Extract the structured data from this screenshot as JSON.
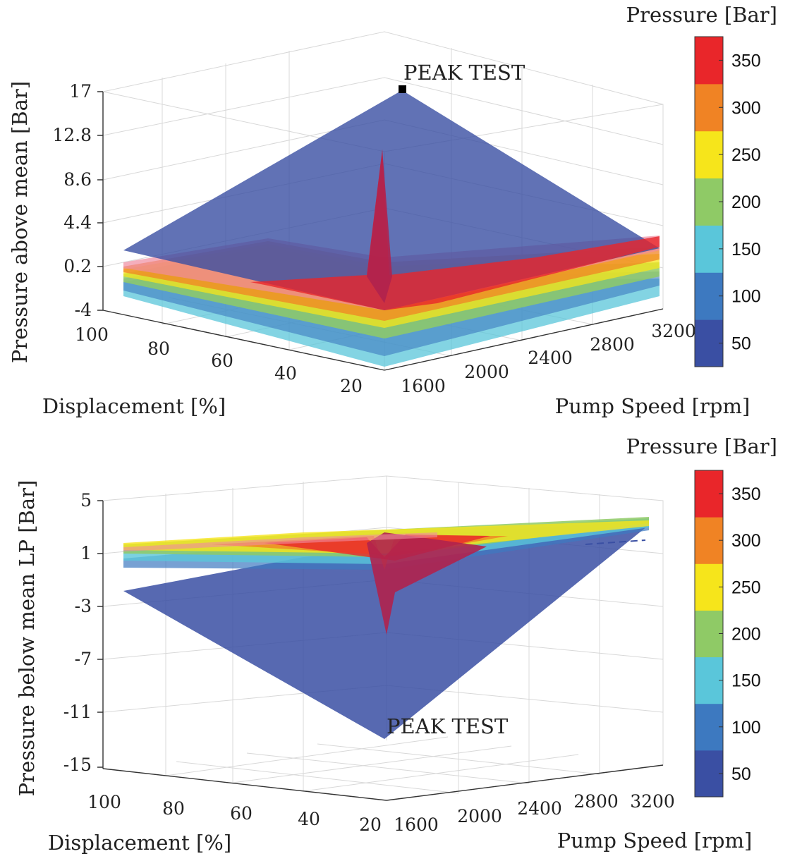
{
  "chart_data": [
    {
      "type": "surface",
      "title": "",
      "xlabel": "Displacement [%]",
      "ylabel": "Pump Speed [rpm]",
      "zlabel": "Pressure above mean [Bar]",
      "x_ticks": [
        "100",
        "80",
        "60",
        "40",
        "20"
      ],
      "y_ticks": [
        "1600",
        "2000",
        "2400",
        "2800",
        "3200"
      ],
      "z_ticks": [
        "17",
        "12.8",
        "8.6",
        "4.4",
        "0.2",
        "-4"
      ],
      "zlim": [
        -4,
        17
      ],
      "annotation": "PEAK TEST",
      "colorbar_label": "Pressure [Bar]",
      "colorbar_ticks": [
        "350",
        "300",
        "250",
        "200",
        "150",
        "100",
        "50"
      ],
      "colorbar_colors": [
        "#3a4fa3",
        "#3d79c0",
        "#5ac6da",
        "#8fca66",
        "#f6e51b",
        "#f08324",
        "#e9262a"
      ],
      "series": [
        {
          "name": "50 Bar",
          "peak_value": 17
        },
        {
          "name": "350 Bar",
          "peak_value": 11
        }
      ]
    },
    {
      "type": "surface",
      "title": "",
      "xlabel": "Displacement [%]",
      "ylabel": "Pump Speed [rpm]",
      "zlabel": "Pressure below mean LP [Bar]",
      "x_ticks": [
        "100",
        "80",
        "60",
        "40",
        "20"
      ],
      "y_ticks": [
        "1600",
        "2000",
        "2400",
        "2800",
        "3200"
      ],
      "z_ticks": [
        "5",
        "1",
        "-3",
        "-7",
        "-11",
        "-15"
      ],
      "zlim": [
        -15,
        5
      ],
      "annotation": "PEAK TEST",
      "colorbar_label": "Pressure [Bar]",
      "colorbar_ticks": [
        "350",
        "300",
        "250",
        "200",
        "150",
        "100",
        "50"
      ],
      "colorbar_colors": [
        "#3a4fa3",
        "#3d79c0",
        "#5ac6da",
        "#8fca66",
        "#f6e51b",
        "#f08324",
        "#e9262a"
      ],
      "series": [
        {
          "name": "50 Bar",
          "peak_value": -13
        },
        {
          "name": "350 Bar",
          "peak_value": -5
        }
      ]
    }
  ]
}
